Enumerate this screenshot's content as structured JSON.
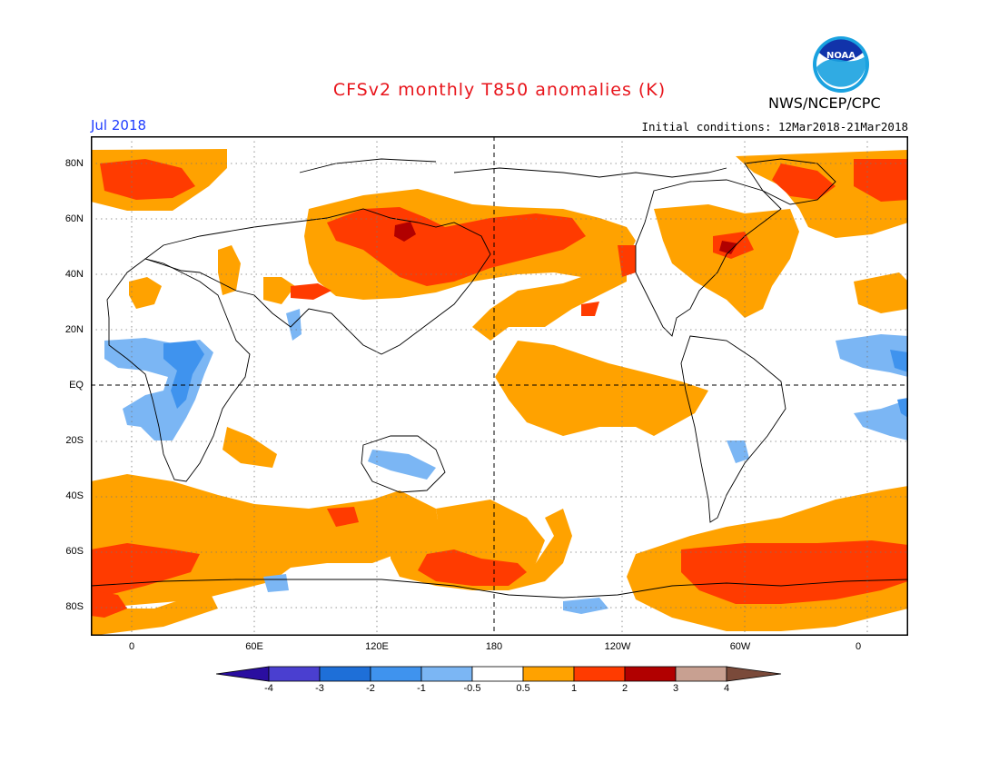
{
  "title": "CFSv2 monthly T850 anomalies (K)",
  "agency": "NWS/NCEP/CPC",
  "logo_text": "NOAA",
  "valid_month": "Jul 2018",
  "initial_conditions": "Initial conditions: 12Mar2018-21Mar2018",
  "lat_labels": [
    "80N",
    "60N",
    "40N",
    "20N",
    "EQ",
    "20S",
    "40S",
    "60S",
    "80S"
  ],
  "lon_labels": [
    "0",
    "60E",
    "120E",
    "180",
    "120W",
    "60W",
    "0"
  ],
  "colorbar": {
    "ticks": [
      "-4",
      "-3",
      "-2",
      "-1",
      "-0.5",
      "0.5",
      "1",
      "2",
      "3",
      "4"
    ],
    "colors": [
      "#2a0ea0",
      "#4a3fd0",
      "#1e6fd8",
      "#3f93ee",
      "#7bb6f4",
      "#ffffff",
      "#ffa200",
      "#ff3b00",
      "#b10000",
      "#c8a091",
      "#7a4a3a"
    ]
  },
  "map": {
    "projection": "cylindrical equidistant",
    "lon_range": [
      -20,
      380
    ],
    "lat_range": [
      -90,
      90
    ],
    "land_outline": "continents",
    "grid": "dotted 20 degree",
    "reference_lines": [
      "equator",
      "180 meridian"
    ]
  }
}
